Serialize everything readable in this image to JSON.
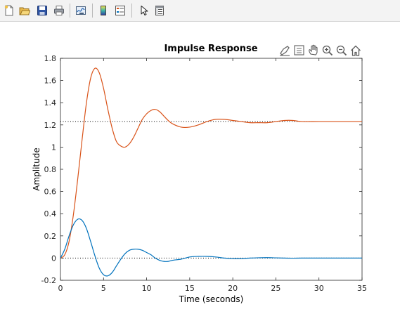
{
  "toolbar": {
    "buttons": [
      {
        "name": "new-figure-icon"
      },
      {
        "name": "open-file-icon"
      },
      {
        "name": "save-icon"
      },
      {
        "name": "print-icon"
      },
      {
        "name": "link-plot-icon"
      },
      {
        "name": "insert-colorbar-icon"
      },
      {
        "name": "insert-legend-icon"
      },
      {
        "name": "pointer-icon"
      },
      {
        "name": "property-inspector-icon"
      }
    ]
  },
  "axes_toolbar": {
    "icons": [
      "brush-icon",
      "data-tips-icon",
      "pan-icon",
      "zoom-in-icon",
      "zoom-out-icon",
      "home-icon"
    ]
  },
  "colors": {
    "series_blue": "#0072bd",
    "series_orange": "#d95319",
    "reference": "#000000",
    "axis": "#262626"
  },
  "chart_data": {
    "type": "line",
    "title": "Impulse Response",
    "xlabel": "Time (seconds)",
    "ylabel": "Amplitude",
    "xlim": [
      0,
      35
    ],
    "ylim": [
      -0.2,
      1.8
    ],
    "x_ticks": [
      "0",
      "5",
      "10",
      "15",
      "20",
      "25",
      "30",
      "35"
    ],
    "y_ticks": [
      "-0.2",
      "0",
      "0.2",
      "0.4",
      "0.6",
      "0.8",
      "1",
      "1.2",
      "1.4",
      "1.6",
      "1.8"
    ],
    "grid": false,
    "reference_lines": [
      {
        "y": 0,
        "style": "dotted"
      },
      {
        "y": 1.23,
        "style": "dotted"
      }
    ],
    "series": [
      {
        "color": "#d95319",
        "x": [
          0,
          0.5,
          1,
          1.5,
          2,
          2.5,
          3,
          3.5,
          4,
          4.5,
          5,
          5.5,
          6,
          6.5,
          7,
          7.5,
          8,
          8.5,
          9,
          9.5,
          10,
          10.5,
          11,
          11.5,
          12,
          12.5,
          13,
          14,
          15,
          16,
          17,
          18,
          19,
          20,
          21,
          22,
          23,
          24,
          25,
          26,
          27,
          28,
          30,
          32,
          35
        ],
        "y": [
          0,
          0.03,
          0.15,
          0.39,
          0.71,
          1.06,
          1.39,
          1.62,
          1.71,
          1.67,
          1.53,
          1.34,
          1.17,
          1.05,
          1.01,
          1.0,
          1.03,
          1.09,
          1.17,
          1.25,
          1.3,
          1.33,
          1.34,
          1.32,
          1.28,
          1.24,
          1.21,
          1.18,
          1.18,
          1.2,
          1.23,
          1.25,
          1.25,
          1.24,
          1.23,
          1.22,
          1.22,
          1.22,
          1.23,
          1.24,
          1.24,
          1.23,
          1.23,
          1.23,
          1.23
        ]
      },
      {
        "color": "#0072bd",
        "x": [
          0,
          0.5,
          1,
          1.5,
          2,
          2.5,
          3,
          3.5,
          4,
          4.5,
          5,
          5.5,
          6,
          6.5,
          7,
          7.5,
          8,
          8.5,
          9,
          9.5,
          10,
          10.5,
          11,
          11.5,
          12,
          12.5,
          13,
          14,
          15,
          16,
          17,
          18,
          19,
          20,
          21,
          22,
          23,
          24,
          25,
          26,
          27,
          28,
          30,
          32,
          35
        ],
        "y": [
          0,
          0.08,
          0.2,
          0.3,
          0.35,
          0.34,
          0.27,
          0.15,
          0.02,
          -0.09,
          -0.15,
          -0.16,
          -0.13,
          -0.07,
          -0.01,
          0.04,
          0.07,
          0.08,
          0.08,
          0.07,
          0.05,
          0.03,
          0.0,
          -0.02,
          -0.03,
          -0.03,
          -0.02,
          -0.01,
          0.01,
          0.015,
          0.015,
          0.01,
          0.0,
          -0.005,
          -0.005,
          0.0,
          0.003,
          0.004,
          0.002,
          0.0,
          -0.001,
          0.0,
          0.0,
          0.0,
          0.0
        ]
      }
    ]
  }
}
